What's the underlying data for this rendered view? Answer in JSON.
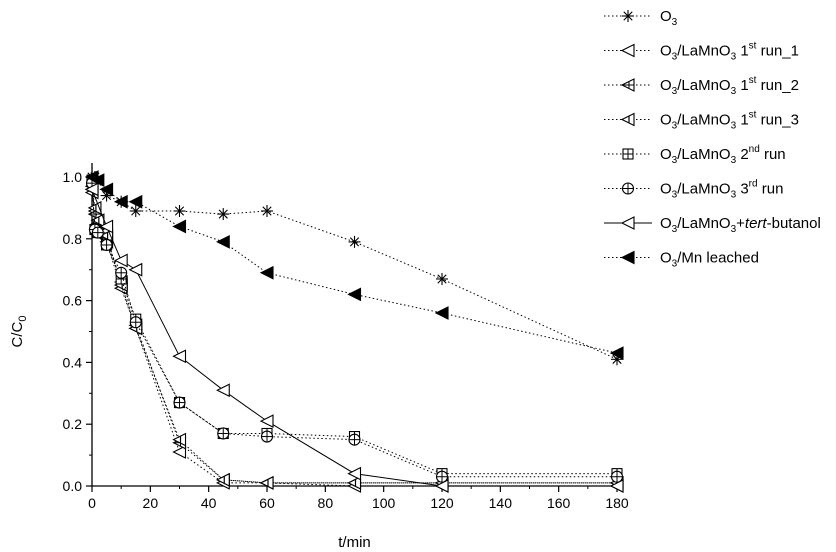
{
  "chart_data": {
    "type": "line",
    "xlabel": "t/min",
    "ylabel": {
      "main": "C/C",
      "sub": "0"
    },
    "xlim": [
      0,
      180
    ],
    "ylim": [
      0,
      1.0
    ],
    "xticks": [
      0,
      20,
      40,
      60,
      80,
      100,
      120,
      140,
      160,
      180
    ],
    "yticks": [
      0.0,
      0.2,
      0.4,
      0.6,
      0.8,
      1.0
    ],
    "xtick_labels": [
      "0",
      "20",
      "40",
      "60",
      "80",
      "100",
      "120",
      "140",
      "160",
      "180"
    ],
    "ytick_labels": [
      "0.0",
      "0.2",
      "0.4",
      "0.6",
      "0.8",
      "1.0"
    ],
    "grid": false,
    "legend_position": "top-right, outside plot area",
    "series": [
      {
        "label": [
          {
            "t": "O"
          },
          {
            "t": "3",
            "sub": true
          }
        ],
        "marker": "asterisk",
        "line": "dotted",
        "x": [
          0,
          1,
          2,
          5,
          10,
          15,
          30,
          45,
          60,
          90,
          120,
          180
        ],
        "y": [
          1.0,
          1.0,
          0.99,
          0.94,
          0.92,
          0.89,
          0.89,
          0.88,
          0.89,
          0.79,
          0.67,
          0.41
        ]
      },
      {
        "label": [
          {
            "t": "O"
          },
          {
            "t": "3",
            "sub": true
          },
          {
            "t": "/LaMnO"
          },
          {
            "t": "3",
            "sub": true
          },
          {
            "t": " 1"
          },
          {
            "t": "st",
            "sup": true
          },
          {
            "t": " run_1"
          }
        ],
        "marker": "triangle-left-open",
        "line": "dotted",
        "x": [
          0,
          1,
          2,
          5,
          10,
          15,
          30,
          45,
          60,
          90,
          120,
          180
        ],
        "y": [
          0.95,
          0.89,
          0.86,
          0.79,
          0.64,
          0.51,
          0.11,
          0.01,
          0.01,
          0.0,
          0.0,
          0.0
        ]
      },
      {
        "label": [
          {
            "t": "O"
          },
          {
            "t": "3",
            "sub": true
          },
          {
            "t": "/LaMnO"
          },
          {
            "t": "3",
            "sub": true
          },
          {
            "t": " 1"
          },
          {
            "t": "st",
            "sup": true
          },
          {
            "t": " run_2"
          }
        ],
        "marker": "triangle-left-cross",
        "line": "dotted",
        "x": [
          0,
          1,
          2,
          5,
          10,
          15,
          30,
          45,
          60,
          90,
          120,
          180
        ],
        "y": [
          0.96,
          0.88,
          0.85,
          0.8,
          0.66,
          0.52,
          0.14,
          0.02,
          0.01,
          0.01,
          0.01,
          0.01
        ]
      },
      {
        "label": [
          {
            "t": "O"
          },
          {
            "t": "3",
            "sub": true
          },
          {
            "t": "/LaMnO"
          },
          {
            "t": "3",
            "sub": true
          },
          {
            "t": " 1"
          },
          {
            "t": "st",
            "sup": true
          },
          {
            "t": " run_3"
          }
        ],
        "marker": "triangle-left-half",
        "line": "dotted",
        "x": [
          0,
          1,
          2,
          5,
          10,
          15,
          30,
          45,
          60,
          90,
          120,
          180
        ],
        "y": [
          0.97,
          0.9,
          0.86,
          0.81,
          0.65,
          0.51,
          0.15,
          0.02,
          0.01,
          0.01,
          0.01,
          0.01
        ]
      },
      {
        "label": [
          {
            "t": "O"
          },
          {
            "t": "3",
            "sub": true
          },
          {
            "t": "/LaMnO"
          },
          {
            "t": "3",
            "sub": true
          },
          {
            "t": " 2"
          },
          {
            "t": "nd",
            "sup": true
          },
          {
            "t": " run"
          }
        ],
        "marker": "square-cross",
        "line": "dotted",
        "x": [
          0,
          1,
          2,
          5,
          10,
          15,
          30,
          45,
          60,
          90,
          120,
          180
        ],
        "y": [
          0.99,
          0.83,
          0.82,
          0.78,
          0.67,
          0.54,
          0.27,
          0.17,
          0.17,
          0.16,
          0.04,
          0.04
        ]
      },
      {
        "label": [
          {
            "t": "O"
          },
          {
            "t": "3",
            "sub": true
          },
          {
            "t": "/LaMnO"
          },
          {
            "t": "3",
            "sub": true
          },
          {
            "t": " 3"
          },
          {
            "t": "rd",
            "sup": true
          },
          {
            "t": " run"
          }
        ],
        "marker": "circle-cross",
        "line": "dotted",
        "x": [
          0,
          1,
          2,
          5,
          10,
          15,
          30,
          45,
          60,
          90,
          120,
          180
        ],
        "y": [
          0.98,
          0.83,
          0.82,
          0.78,
          0.69,
          0.53,
          0.27,
          0.17,
          0.16,
          0.15,
          0.03,
          0.03
        ]
      },
      {
        "label": [
          {
            "t": "O"
          },
          {
            "t": "3",
            "sub": true
          },
          {
            "t": "/LaMnO"
          },
          {
            "t": "3",
            "sub": true
          },
          {
            "t": "+"
          },
          {
            "t": "tert",
            "i": true
          },
          {
            "t": "-butanol"
          }
        ],
        "marker": "triangle-left-open",
        "line": "solid",
        "x": [
          0,
          5,
          10,
          15,
          30,
          45,
          60,
          90,
          120,
          180
        ],
        "y": [
          0.96,
          0.84,
          0.73,
          0.7,
          0.42,
          0.31,
          0.21,
          0.04,
          0.0,
          0.0
        ]
      },
      {
        "label": [
          {
            "t": "O"
          },
          {
            "t": "3",
            "sub": true
          },
          {
            "t": "/Mn leached"
          }
        ],
        "marker": "triangle-left-filled",
        "line": "dotted",
        "x": [
          0,
          2,
          5,
          10,
          15,
          30,
          45,
          60,
          90,
          120,
          180
        ],
        "y": [
          1.0,
          0.99,
          0.96,
          0.92,
          0.92,
          0.84,
          0.79,
          0.69,
          0.62,
          0.56,
          0.43
        ]
      }
    ]
  }
}
